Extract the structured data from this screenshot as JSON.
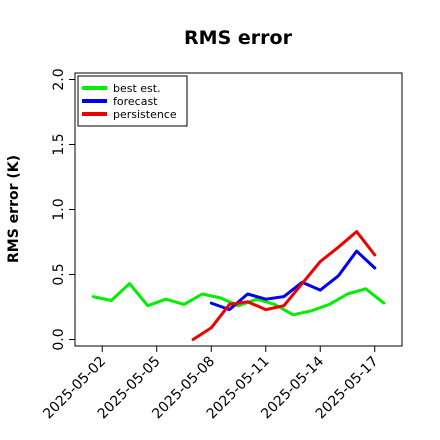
{
  "chart_data": {
    "type": "line",
    "title": "RMS error",
    "xlabel": "",
    "ylabel": "RMS error (K)",
    "ylim": [
      -0.05,
      2.05
    ],
    "yticks": [
      0.0,
      0.5,
      1.0,
      1.5,
      2.0
    ],
    "ytick_labels": [
      "0.0",
      "0.5",
      "1.0",
      "1.5",
      "2.0"
    ],
    "xlim": [
      "2025-04-30T12:00",
      "2025-05-18T12:00"
    ],
    "xticks": [
      "2025-05-02",
      "2025-05-05",
      "2025-05-08",
      "2025-05-11",
      "2025-05-14",
      "2025-05-17"
    ],
    "xtick_labels": [
      "2025-05-02",
      "2025-05-05",
      "2025-05-08",
      "2025-05-11",
      "2025-05-14",
      "2025-05-17"
    ],
    "highlighted_xtick": "2025-05-08",
    "highlight_color": "#228B22",
    "grid": false,
    "legend_position": "upper left",
    "series": [
      {
        "name": "best est.",
        "color": "#00ee00",
        "x": [
          "2025-05-01T12:00",
          "2025-05-02T12:00",
          "2025-05-03T12:00",
          "2025-05-04T12:00",
          "2025-05-05T12:00",
          "2025-05-06T12:00",
          "2025-05-07T12:00",
          "2025-05-08T12:00",
          "2025-05-09T12:00",
          "2025-05-10T12:00",
          "2025-05-11T12:00",
          "2025-05-12T12:00",
          "2025-05-13T12:00",
          "2025-05-14T12:00",
          "2025-05-15T12:00",
          "2025-05-16T12:00",
          "2025-05-17T12:00"
        ],
        "values": [
          0.33,
          0.3,
          0.43,
          0.26,
          0.31,
          0.27,
          0.35,
          0.32,
          0.26,
          0.31,
          0.27,
          0.19,
          0.22,
          0.27,
          0.35,
          0.39,
          0.28
        ]
      },
      {
        "name": "forecast",
        "color": "#0000ee",
        "x": [
          "2025-05-08T00:00",
          "2025-05-09T00:00",
          "2025-05-10T00:00",
          "2025-05-11T00:00",
          "2025-05-12T00:00",
          "2025-05-13T00:00",
          "2025-05-14T00:00",
          "2025-05-15T00:00",
          "2025-05-16T00:00",
          "2025-05-17T00:00"
        ],
        "values": [
          0.28,
          0.23,
          0.35,
          0.31,
          0.33,
          0.44,
          0.38,
          0.49,
          0.68,
          0.55
        ]
      },
      {
        "name": "persistence",
        "color": "#ee0000",
        "x": [
          "2025-05-07T00:00",
          "2025-05-08T00:00",
          "2025-05-09T00:00",
          "2025-05-10T00:00",
          "2025-05-11T00:00",
          "2025-05-12T00:00",
          "2025-05-13T00:00",
          "2025-05-14T00:00",
          "2025-05-15T00:00",
          "2025-05-16T00:00",
          "2025-05-17T00:00"
        ],
        "values": [
          0.0,
          0.09,
          0.27,
          0.29,
          0.23,
          0.26,
          0.43,
          0.6,
          0.71,
          0.83,
          0.65
        ]
      }
    ]
  }
}
